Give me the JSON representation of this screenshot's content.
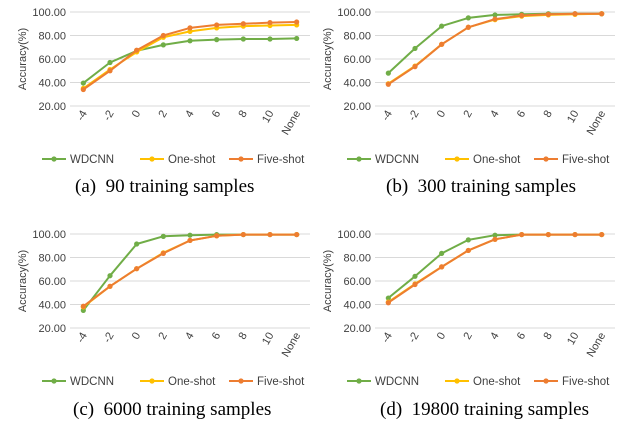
{
  "colors": {
    "WDCNN": "#70ad47",
    "One-shot": "#ffc000",
    "Five-shot": "#ed7d31"
  },
  "chart_data": [
    {
      "type": "line",
      "caption": "(a)  90 training samples",
      "ylabel": "Accuracy(%)",
      "categories": [
        "-4",
        "-2",
        "0",
        "2",
        "4",
        "6",
        "8",
        "10",
        "None"
      ],
      "yticks": [
        "20.00",
        "40.00",
        "60.00",
        "80.00",
        "100.00"
      ],
      "ylim": [
        20,
        100
      ],
      "legend": "bottom",
      "series": [
        {
          "name": "WDCNN",
          "values": [
            39.5,
            57,
            67,
            72,
            75.5,
            76.5,
            77,
            77,
            77.5
          ]
        },
        {
          "name": "One-shot",
          "values": [
            35,
            51,
            66,
            78.5,
            83.5,
            86.5,
            88,
            88.5,
            89
          ]
        },
        {
          "name": "Five-shot",
          "values": [
            34,
            50,
            67.5,
            80,
            86.5,
            89,
            90,
            91,
            91.5
          ]
        }
      ]
    },
    {
      "type": "line",
      "caption": "(b)  300 training samples",
      "ylabel": "Accuracy(%)",
      "categories": [
        "-4",
        "-2",
        "0",
        "2",
        "4",
        "6",
        "8",
        "10",
        "None"
      ],
      "yticks": [
        "20.00",
        "40.00",
        "60.00",
        "80.00",
        "100.00"
      ],
      "ylim": [
        20,
        100
      ],
      "legend": "bottom",
      "series": [
        {
          "name": "WDCNN",
          "values": [
            48,
            69,
            88,
            95,
            97.5,
            98,
            98.5,
            98.5,
            98.5
          ]
        },
        {
          "name": "One-shot",
          "values": [
            39,
            54,
            72.5,
            87,
            93.5,
            96.5,
            97.5,
            98,
            98.5
          ]
        },
        {
          "name": "Five-shot",
          "values": [
            38.5,
            53.5,
            72.5,
            87,
            94,
            97,
            98,
            98.5,
            98.5
          ]
        }
      ]
    },
    {
      "type": "line",
      "caption": "(c)  6000 training samples",
      "ylabel": "Accuracy(%)",
      "categories": [
        "-4",
        "-2",
        "0",
        "2",
        "4",
        "6",
        "8",
        "10",
        "None"
      ],
      "yticks": [
        "20.00",
        "40.00",
        "60.00",
        "80.00",
        "100.00"
      ],
      "ylim": [
        20,
        100
      ],
      "legend": "bottom",
      "series": [
        {
          "name": "WDCNN",
          "values": [
            35,
            64.5,
            91.5,
            98,
            99,
            99.5,
            99.5,
            99.5,
            99.5
          ]
        },
        {
          "name": "One-shot",
          "values": [
            38,
            55.5,
            70.5,
            84,
            94.5,
            98.5,
            99.5,
            99.5,
            99.5
          ]
        },
        {
          "name": "Five-shot",
          "values": [
            38.5,
            55.5,
            70.5,
            83.5,
            94.5,
            98.5,
            99.5,
            99.5,
            99.5
          ]
        }
      ]
    },
    {
      "type": "line",
      "caption": "(d)  19800 training samples",
      "ylabel": "Accuracy(%)",
      "categories": [
        "-4",
        "-2",
        "0",
        "2",
        "4",
        "6",
        "8",
        "10",
        "None"
      ],
      "yticks": [
        "20.00",
        "40.00",
        "60.00",
        "80.00",
        "100.00"
      ],
      "ylim": [
        20,
        100
      ],
      "legend": "bottom",
      "series": [
        {
          "name": "WDCNN",
          "values": [
            45.5,
            64,
            83.5,
            95,
            99,
            99.5,
            99.5,
            99.5,
            99.5
          ]
        },
        {
          "name": "One-shot",
          "values": [
            42,
            57.5,
            72,
            86,
            95.5,
            99.5,
            99.5,
            99.5,
            99.5
          ]
        },
        {
          "name": "Five-shot",
          "values": [
            41.5,
            57,
            72,
            86,
            95.5,
            99.5,
            99.5,
            99.5,
            99.5
          ]
        }
      ]
    }
  ]
}
